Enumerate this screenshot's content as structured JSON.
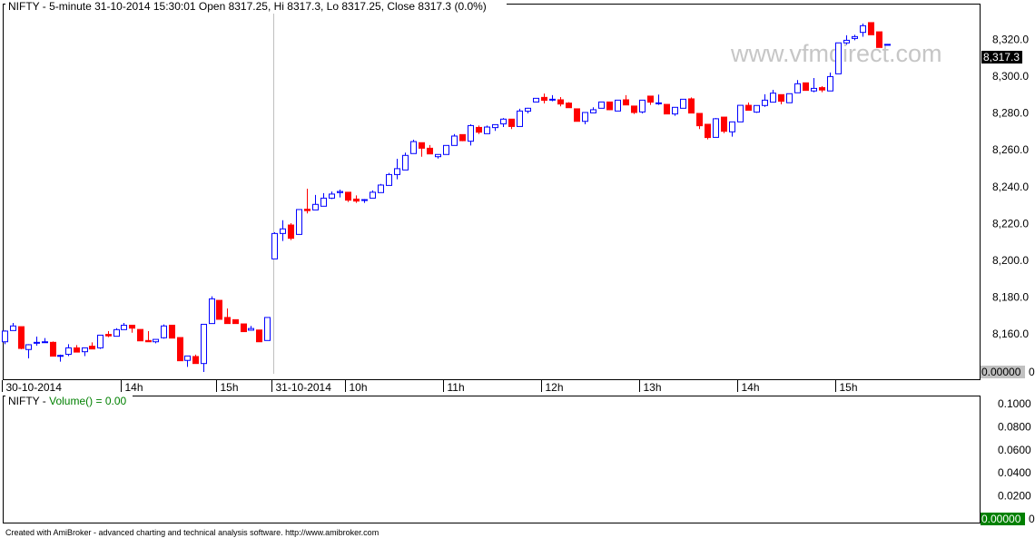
{
  "header": {
    "title": "NIFTY - 5-minute 31-10-2014 15:30:01 Open 8317.25, Hi 8317.3, Lo 8317.25, Close 8317.3 (0.0%)"
  },
  "watermark": "www.vfmdirect.com",
  "volume_pane": {
    "label_prefix": "NIFTY - ",
    "label_value": "Volume() = 0.00",
    "label_color": "#008000",
    "y_ticks": [
      "0.1000",
      "0.0800",
      "0.0600",
      "0.0400",
      "0.0200"
    ],
    "y_values": [
      0.1,
      0.08,
      0.06,
      0.04,
      0.02
    ],
    "current_value": "0.00000",
    "current_value_bg": "#008000"
  },
  "footer": "Created with AmiBroker - advanced charting and technical analysis software. http://www.amibroker.com",
  "chart_data": {
    "type": "candlestick",
    "symbol": "NIFTY",
    "interval": "5-minute",
    "ylim": [
      8130,
      8340
    ],
    "y_ticks": [
      "8,160.0",
      "8,180.0",
      "8,200.0",
      "8,220.0",
      "8,240.0",
      "8,260.0",
      "8,280.0",
      "8,300.0",
      "8,320.0"
    ],
    "y_tick_values": [
      8160,
      8180,
      8200,
      8220,
      8240,
      8260,
      8280,
      8300,
      8320
    ],
    "last_price_label": "8,317.3",
    "last_price": 8317.3,
    "bottom_value_label": "0.00000",
    "up_color": "#0000ff",
    "down_color": "#ff0000",
    "grid": false,
    "x_ticks": [
      {
        "label": "30-10-2014",
        "day": 0,
        "bar": 0
      },
      {
        "label": "14h",
        "day": 0,
        "bar": 15
      },
      {
        "label": "15h",
        "day": 0,
        "bar": 27
      },
      {
        "label": "31-10-2014",
        "day": 1,
        "bar": 0
      },
      {
        "label": "10h",
        "day": 1,
        "bar": 9
      },
      {
        "label": "11h",
        "day": 1,
        "bar": 21
      },
      {
        "label": "12h",
        "day": 1,
        "bar": 33
      },
      {
        "label": "13h",
        "day": 1,
        "bar": 45
      },
      {
        "label": "14h",
        "day": 1,
        "bar": 57
      },
      {
        "label": "15h",
        "day": 1,
        "bar": 69
      }
    ],
    "ohlc_fields": [
      "open",
      "high",
      "low",
      "close"
    ],
    "days": [
      {
        "date": "30-10-2014",
        "bars": [
          [
            8155.8,
            8162,
            8154.5,
            8161.6
          ],
          [
            8161.9,
            8166,
            8161.9,
            8164.4
          ],
          [
            8164,
            8164,
            8151.7,
            8152.2
          ],
          [
            8151.6,
            8154.5,
            8146.8,
            8154.2
          ],
          [
            8155,
            8158.6,
            8153.7,
            8155.5
          ],
          [
            8155.5,
            8157.8,
            8155.5,
            8155.8
          ],
          [
            8155.5,
            8156,
            8148,
            8148
          ],
          [
            8148,
            8148.8,
            8145,
            8148.4
          ],
          [
            8149,
            8154.5,
            8148,
            8152.5
          ],
          [
            8152.5,
            8154,
            8150.2,
            8150.2
          ],
          [
            8150.4,
            8152.5,
            8148,
            8152.5
          ],
          [
            8153.4,
            8155.5,
            8151.9,
            8151.9
          ],
          [
            8152.5,
            8159.4,
            8152,
            8159.4
          ],
          [
            8159.8,
            8161.6,
            8158.3,
            8159
          ],
          [
            8158.8,
            8163.2,
            8158.8,
            8162.4
          ],
          [
            8162.4,
            8166,
            8162.4,
            8164.8
          ],
          [
            8164.8,
            8164.8,
            8160.7,
            8163.2
          ],
          [
            8162.5,
            8162.5,
            8156.3,
            8156.3
          ],
          [
            8156.5,
            8161.6,
            8155.8,
            8155.8
          ],
          [
            8155.8,
            8157.1,
            8155,
            8157.1
          ],
          [
            8158,
            8165.2,
            8157.5,
            8164.4
          ],
          [
            8164.8,
            8164.8,
            8157.8,
            8157.8
          ],
          [
            8158.1,
            8158.1,
            8145.5,
            8145.5
          ],
          [
            8145.7,
            8148.1,
            8142.2,
            8148.1
          ],
          [
            8147.8,
            8148.8,
            8144,
            8144
          ],
          [
            8144,
            8165.3,
            8139.4,
            8165.3
          ],
          [
            8165.7,
            8180.5,
            8165.7,
            8179.1
          ],
          [
            8178.3,
            8178.3,
            8168,
            8168
          ],
          [
            8169,
            8173.9,
            8165.7,
            8165.7
          ],
          [
            8167.8,
            8168,
            8165.7,
            8165.7
          ],
          [
            8165.5,
            8165.5,
            8161.3,
            8161.3
          ],
          [
            8162.1,
            8164.4,
            8162,
            8163
          ],
          [
            8162.2,
            8162.2,
            8155.8,
            8155.8
          ],
          [
            8156.5,
            8169,
            8156.5,
            8169
          ]
        ]
      },
      {
        "date": "31-10-2014",
        "bars": [
          [
            8200.8,
            8215.3,
            8200.8,
            8214.6
          ],
          [
            8214.6,
            8221.8,
            8210.5,
            8217.1
          ],
          [
            8219.2,
            8220.2,
            8211,
            8212
          ],
          [
            8214.1,
            8227.6,
            8214.1,
            8227.6
          ],
          [
            8227.8,
            8238.9,
            8225.5,
            8227
          ],
          [
            8227.4,
            8235.5,
            8227.4,
            8230.4
          ],
          [
            8229.4,
            8236.5,
            8229.4,
            8233.8
          ],
          [
            8233.8,
            8237.4,
            8233.3,
            8236
          ],
          [
            8236.8,
            8238.4,
            8234.2,
            8237.4
          ],
          [
            8237,
            8237,
            8231.7,
            8232.7
          ],
          [
            8233.3,
            8235.3,
            8231.2,
            8232.2
          ],
          [
            8232.7,
            8233.3,
            8231.2,
            8233
          ],
          [
            8233.8,
            8238,
            8233.8,
            8237
          ],
          [
            8236.8,
            8241.5,
            8236.8,
            8240.9
          ],
          [
            8240.7,
            8247.5,
            8240.7,
            8246.6
          ],
          [
            8246.6,
            8255.2,
            8244,
            8249.8
          ],
          [
            8249.1,
            8258.5,
            8249.1,
            8257
          ],
          [
            8258,
            8265.5,
            8258,
            8264.5
          ],
          [
            8263.9,
            8263.9,
            8256.3,
            8260.9
          ],
          [
            8260.9,
            8262.6,
            8257.8,
            8257.8
          ],
          [
            8256.3,
            8257.5,
            8255.3,
            8257.5
          ],
          [
            8257.5,
            8262.4,
            8257.5,
            8262.4
          ],
          [
            8262.4,
            8268.6,
            8262.4,
            8267.5
          ],
          [
            8268.3,
            8268.3,
            8264.7,
            8265
          ],
          [
            8264.7,
            8273.9,
            8262.4,
            8273.2
          ],
          [
            8272.2,
            8273.2,
            8268.6,
            8269.6
          ],
          [
            8268.8,
            8273.2,
            8268.8,
            8272.4
          ],
          [
            8272.1,
            8273.7,
            8270.3,
            8273.7
          ],
          [
            8274.1,
            8277.3,
            8272.4,
            8276.7
          ],
          [
            8276.7,
            8276.7,
            8271.3,
            8272.7
          ],
          [
            8272.7,
            8282.3,
            8272.7,
            8281.1
          ],
          [
            8281,
            8282.8,
            8279.8,
            8282.6
          ],
          [
            8286,
            8288,
            8286,
            8288
          ],
          [
            8288.5,
            8290.6,
            8285.2,
            8286.9
          ],
          [
            8287.4,
            8289.7,
            8286.4,
            8287.5
          ],
          [
            8287.2,
            8288.7,
            8283.6,
            8284.9
          ],
          [
            8285.4,
            8285.9,
            8282.9,
            8282.9
          ],
          [
            8282.3,
            8282.3,
            8275.5,
            8275.5
          ],
          [
            8275.5,
            8280.3,
            8273.9,
            8280.3
          ],
          [
            8280.1,
            8283.1,
            8280.1,
            8281.8
          ],
          [
            8282.6,
            8286,
            8282.6,
            8286
          ],
          [
            8286,
            8286,
            8281.5,
            8281.8
          ],
          [
            8281.1,
            8287,
            8281.1,
            8287
          ],
          [
            8287.2,
            8289.7,
            8284.4,
            8284.4
          ],
          [
            8283.8,
            8283.8,
            8279.5,
            8280.3
          ],
          [
            8280.6,
            8287,
            8279.8,
            8287
          ],
          [
            8289.2,
            8289.2,
            8284.4,
            8285.9
          ],
          [
            8285.4,
            8290,
            8284.4,
            8285.5
          ],
          [
            8284.7,
            8284.7,
            8279.5,
            8279.5
          ],
          [
            8279.5,
            8283.1,
            8278.5,
            8283.1
          ],
          [
            8282.6,
            8287.5,
            8282.6,
            8287.5
          ],
          [
            8287.7,
            8288.5,
            8280,
            8280
          ],
          [
            8279.8,
            8279.8,
            8271.3,
            8273.1
          ],
          [
            8273.9,
            8273.9,
            8265.7,
            8266.7
          ],
          [
            8266.8,
            8277.3,
            8266.8,
            8276.9
          ],
          [
            8277.8,
            8277.8,
            8269.1,
            8270.1
          ],
          [
            8269.8,
            8275.2,
            8267.2,
            8275.2
          ],
          [
            8275.2,
            8284.2,
            8275.2,
            8284.2
          ],
          [
            8284.2,
            8285.7,
            8281.5,
            8281.5
          ],
          [
            8280.5,
            8284.1,
            8280.1,
            8284.1
          ],
          [
            8284.1,
            8290.2,
            8283.4,
            8287
          ],
          [
            8285.9,
            8292.6,
            8285.9,
            8290.8
          ],
          [
            8290,
            8290,
            8284.7,
            8286.4
          ],
          [
            8285.6,
            8290.5,
            8285.6,
            8290.5
          ],
          [
            8291,
            8297.9,
            8291,
            8295.9
          ],
          [
            8296.4,
            8296.4,
            8292.3,
            8292.3
          ],
          [
            8292,
            8299,
            8291.3,
            8293.4
          ],
          [
            8293.8,
            8294.6,
            8291.3,
            8292.5
          ],
          [
            8292,
            8302,
            8292,
            8299.8
          ],
          [
            8301.3,
            8318.1,
            8301.3,
            8318.1
          ],
          [
            8318.1,
            8322.2,
            8317.1,
            8319.5
          ],
          [
            8320.5,
            8322.5,
            8319.5,
            8321.5
          ],
          [
            8323.8,
            8328.6,
            8321.4,
            8327.4
          ],
          [
            8329.1,
            8329.1,
            8322.5,
            8322.5
          ],
          [
            8324.1,
            8324.1,
            8315.6,
            8315.6
          ],
          [
            8317.25,
            8317.3,
            8317.25,
            8317.3
          ]
        ]
      }
    ]
  }
}
